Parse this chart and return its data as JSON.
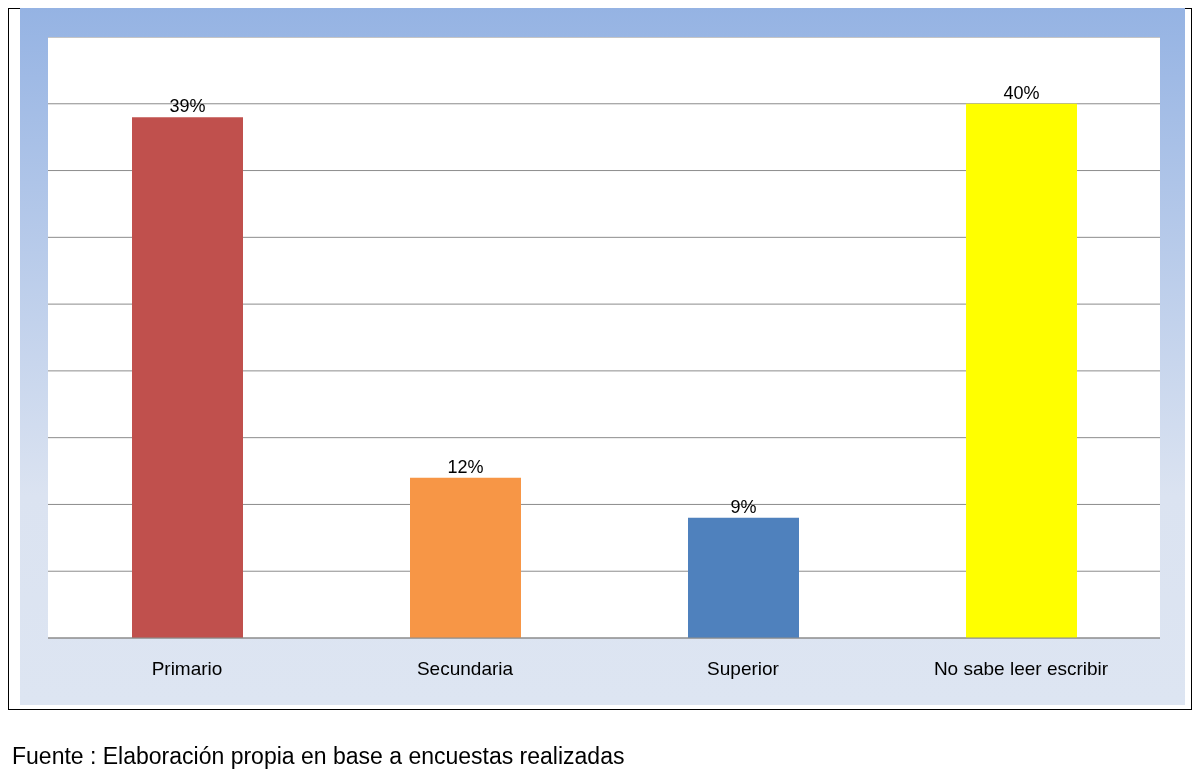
{
  "chart_data": {
    "type": "bar",
    "categories": [
      "Primario",
      "Secundaria",
      "Superior",
      "No sabe leer escribir"
    ],
    "values": [
      39,
      12,
      9,
      40
    ],
    "value_labels": [
      "39%",
      "12%",
      "9%",
      "40%"
    ],
    "colors": [
      "#c0504d",
      "#f79646",
      "#4f81bd",
      "#ffff00"
    ],
    "tick_labels": "x",
    "grid": "y",
    "annotations": [
      "Fuente : Elaboración propia en base a encuestas realizadas"
    ]
  }
}
